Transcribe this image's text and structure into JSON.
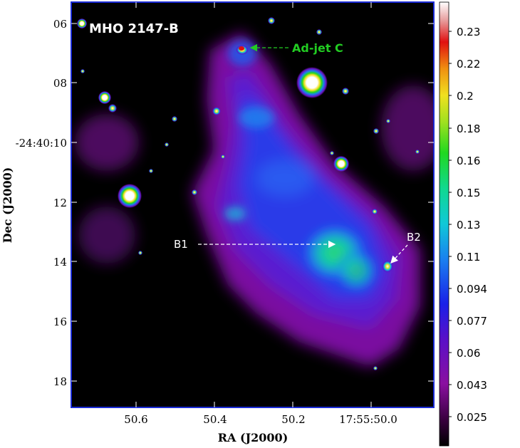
{
  "image": {
    "title": "MHO 2147-B",
    "x_axis_label": "RA (J2000)",
    "y_axis_label": "Dec (J2000)",
    "x_ticks": [
      "50.6",
      "50.4",
      "50.2",
      "17:55:50.0"
    ],
    "y_ticks": [
      "06",
      "08",
      "-24:40:10",
      "12",
      "14",
      "16",
      "18"
    ]
  },
  "annotations": {
    "jet": "Ad-jet C",
    "b1": "B1",
    "b2": "B2"
  },
  "colorbar": {
    "ticks": [
      "0.23",
      "0.22",
      "0.2",
      "0.18",
      "0.16",
      "0.15",
      "0.13",
      "0.11",
      "0.094",
      "0.077",
      "0.06",
      "0.043",
      "0.025"
    ],
    "colormap": "black-purple-blue-cyan-green-yellow-red-white"
  },
  "colors": {
    "frame": "#1a2bd6",
    "jet_annotation": "#22cc22",
    "white_annotation": "#ffffff"
  }
}
